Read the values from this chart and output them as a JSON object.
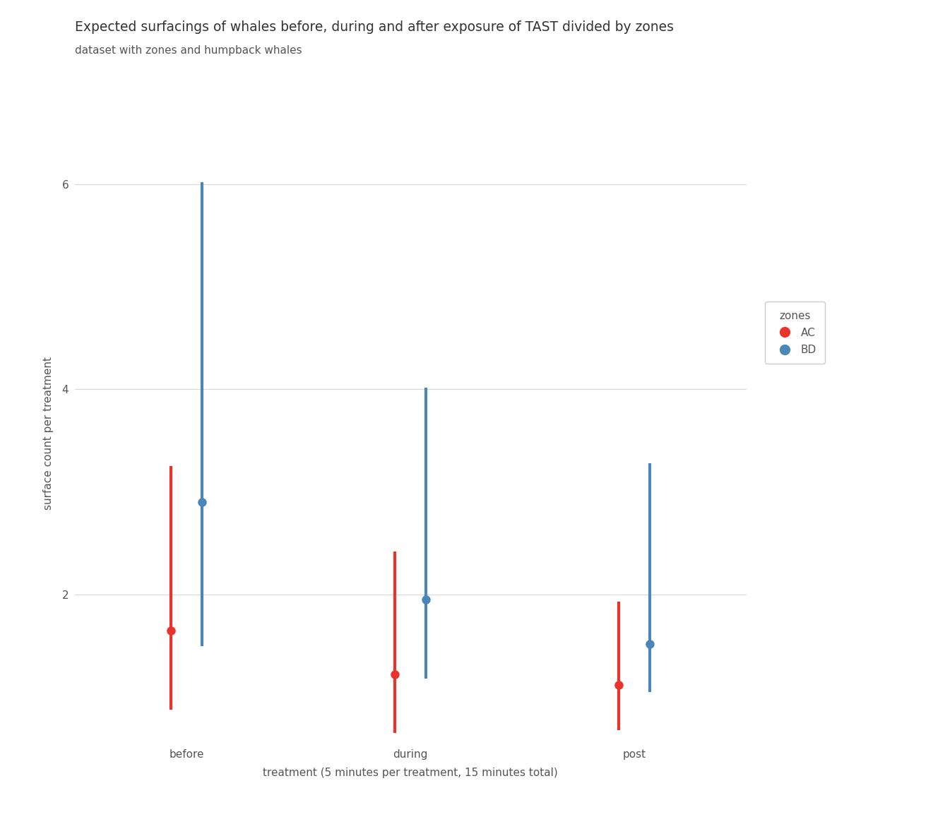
{
  "title": "Expected surfacings of whales before, during and after exposure of TAST divided by zones",
  "subtitle": "dataset with zones and humpback whales",
  "xlabel": "treatment (5 minutes per treatment, 15 minutes total)",
  "ylabel": "surface count per treatment",
  "categories": [
    "before",
    "during",
    "post"
  ],
  "x_positions": [
    1,
    2,
    3
  ],
  "legend_title": "zones",
  "series": {
    "AC": {
      "color": "#e8342a",
      "mean": [
        1.65,
        1.22,
        1.12
      ],
      "ci_low": [
        0.88,
        0.65,
        0.68
      ],
      "ci_high": [
        3.25,
        2.42,
        1.93
      ]
    },
    "BD": {
      "color": "#4a86b8",
      "mean": [
        2.9,
        1.95,
        1.52
      ],
      "ci_low": [
        1.5,
        1.18,
        1.05
      ],
      "ci_high": [
        6.02,
        4.02,
        3.28
      ]
    }
  },
  "x_offsets": {
    "AC": -0.07,
    "BD": 0.07
  },
  "ylim": [
    0.55,
    6.6
  ],
  "yticks": [
    2,
    4,
    6
  ],
  "background_color": "#ffffff",
  "grid_color": "#d8d8d8",
  "title_fontsize": 13.5,
  "subtitle_fontsize": 11,
  "axis_label_fontsize": 11,
  "tick_fontsize": 11,
  "legend_fontsize": 11,
  "marker_size": 9,
  "line_width": 3.0
}
